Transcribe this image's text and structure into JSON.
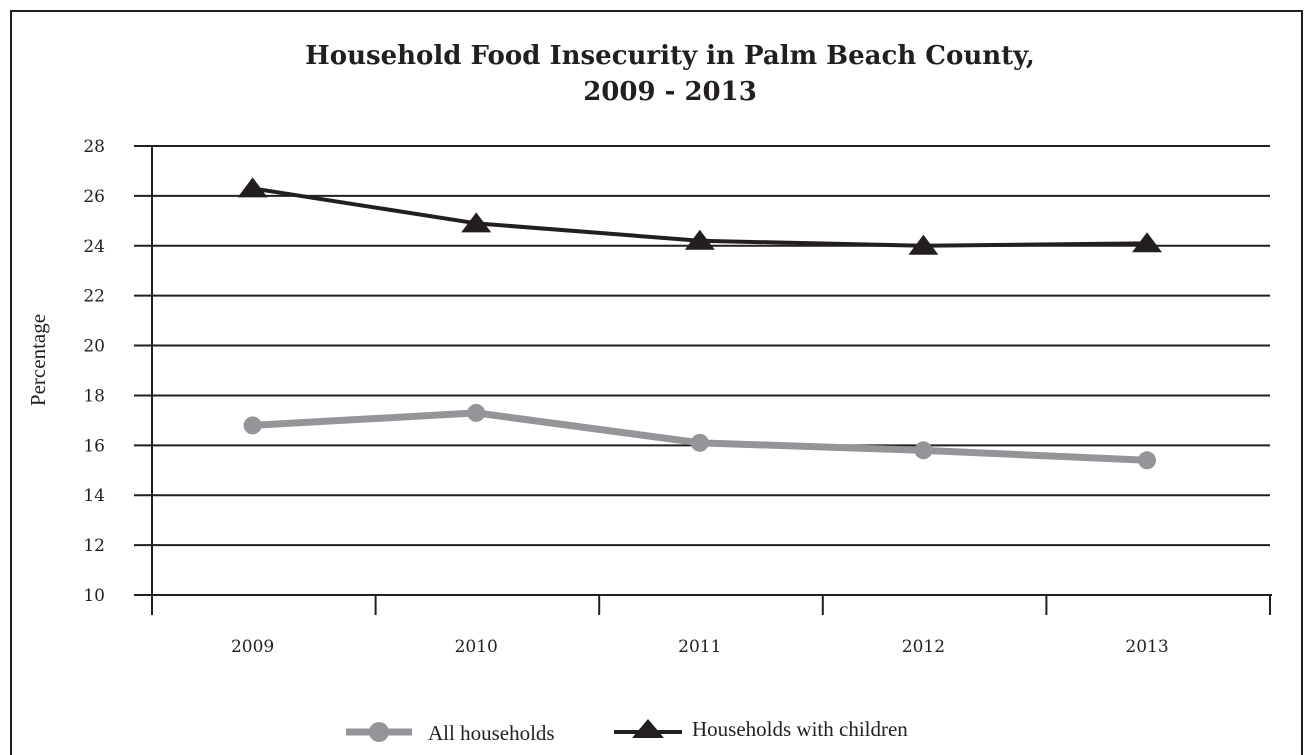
{
  "chart_data": {
    "type": "line",
    "title_line1": "Household Food Insecurity in Palm Beach County,",
    "title_line2": "2009 - 2013",
    "xlabel": "",
    "ylabel": "Percentage",
    "categories": [
      "2009",
      "2010",
      "2011",
      "2012",
      "2013"
    ],
    "y_ticks": [
      10,
      12,
      14,
      16,
      18,
      20,
      22,
      24,
      26,
      28
    ],
    "ylim": [
      10,
      28
    ],
    "grid": true,
    "legend_position": "bottom",
    "series": [
      {
        "name": "All households",
        "values": [
          16.8,
          17.3,
          16.1,
          15.8,
          15.4
        ],
        "color": "#939598",
        "marker": "circle"
      },
      {
        "name": "Households with children",
        "values": [
          26.3,
          24.9,
          24.2,
          24.0,
          24.1
        ],
        "color": "#231f20",
        "marker": "triangle"
      }
    ]
  }
}
